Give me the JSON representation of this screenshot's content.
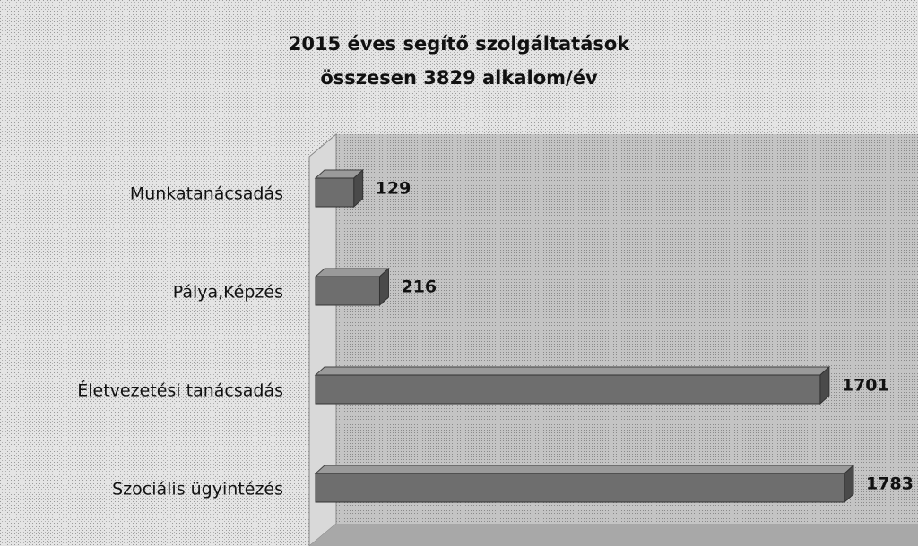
{
  "chart_data": {
    "type": "bar",
    "orientation": "horizontal",
    "title": "2015  éves segítő szolgáltatások",
    "subtitle": "összesen 3829 alkalom/év",
    "categories": [
      "Munkatanácsadás",
      "Pálya,Képzés",
      "Életvezetési tanácsadás",
      "Szociális ügyintézés"
    ],
    "values": [
      129,
      216,
      1701,
      1783
    ],
    "color": "#6e6e6e"
  }
}
